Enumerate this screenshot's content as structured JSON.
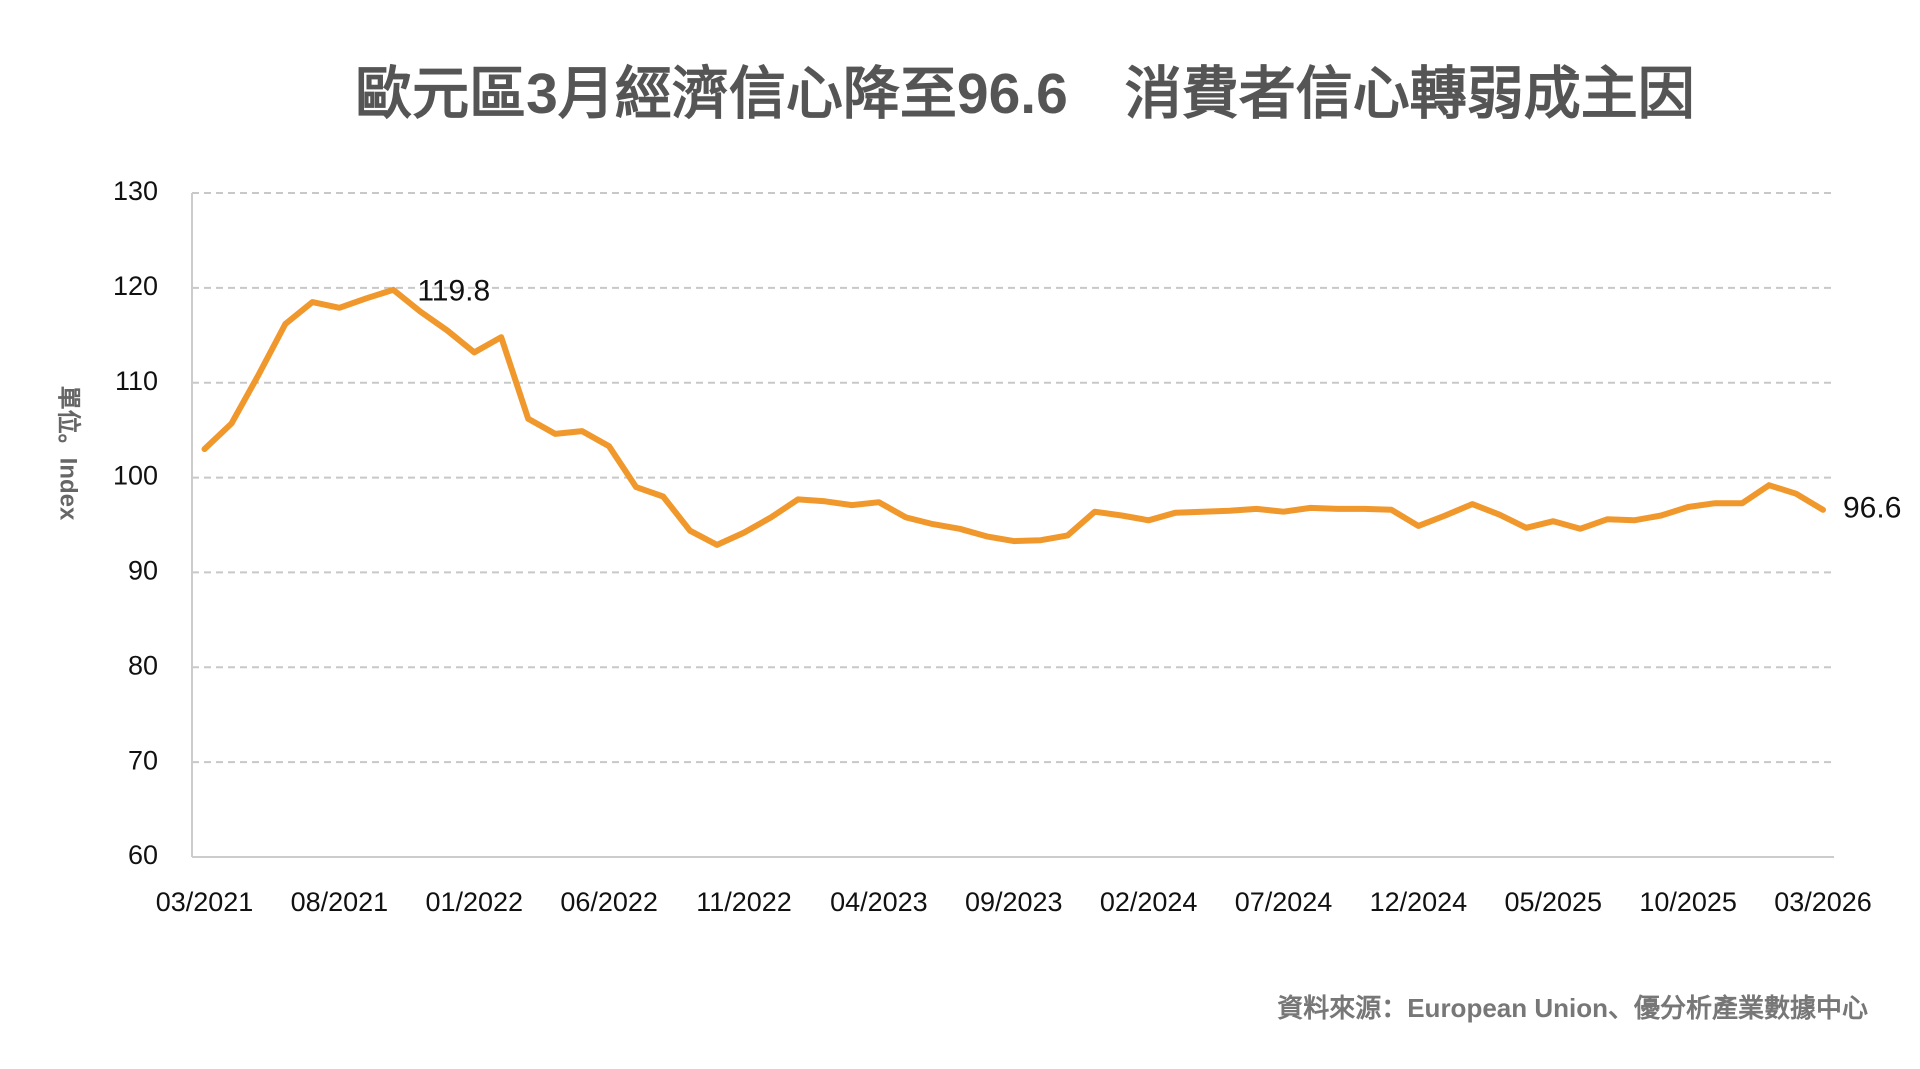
{
  "chart_data": {
    "type": "line",
    "title": "歐元區3月經濟信心降至96.6　消費者信心轉弱成主因",
    "y_label": "單位。Index",
    "source": "資料來源：European Union、優分析產業數據中心",
    "categories": [
      "03/2021",
      null,
      null,
      null,
      null,
      "08/2021",
      null,
      null,
      null,
      null,
      "01/2022",
      null,
      null,
      null,
      null,
      "06/2022",
      null,
      null,
      null,
      null,
      "11/2022",
      null,
      null,
      null,
      null,
      "04/2023",
      null,
      null,
      null,
      null,
      "09/2023",
      null,
      null,
      null,
      null,
      "02/2024",
      null,
      null,
      null,
      null,
      "07/2024",
      null,
      null,
      null,
      null,
      "12/2024",
      null,
      null,
      null,
      null,
      "05/2025",
      null,
      null,
      null,
      null,
      "10/2025",
      null,
      null,
      null,
      null,
      "03/2026"
    ],
    "values": [
      103.0,
      105.7,
      110.8,
      116.2,
      118.5,
      117.9,
      118.9,
      119.8,
      117.5,
      115.5,
      113.2,
      114.8,
      106.2,
      104.6,
      104.9,
      103.3,
      99.0,
      98.0,
      94.4,
      92.9,
      94.2,
      95.8,
      97.7,
      97.5,
      97.1,
      97.4,
      95.8,
      95.1,
      94.6,
      93.8,
      93.3,
      93.4,
      93.9,
      96.4,
      96.0,
      95.5,
      96.3,
      96.4,
      96.5,
      96.7,
      96.4,
      96.8,
      96.7,
      96.7,
      96.6,
      94.9,
      96.0,
      97.2,
      96.1,
      94.7,
      95.4,
      94.6,
      95.6,
      95.5,
      96.0,
      96.9,
      97.3,
      97.3,
      99.2,
      98.3,
      96.6
    ],
    "value_labels": [
      null,
      null,
      null,
      null,
      null,
      null,
      null,
      "119.8",
      null,
      null,
      null,
      null,
      null,
      null,
      null,
      null,
      null,
      null,
      null,
      null,
      null,
      null,
      null,
      null,
      null,
      null,
      null,
      null,
      null,
      null,
      null,
      null,
      null,
      null,
      null,
      null,
      null,
      null,
      null,
      null,
      null,
      null,
      null,
      null,
      null,
      null,
      null,
      null,
      null,
      null,
      null,
      null,
      null,
      null,
      null,
      null,
      null,
      null,
      null,
      null,
      "96.6"
    ],
    "color": "#f0982c",
    "ylim": [
      60,
      130
    ],
    "yticks": [
      60,
      70,
      80,
      90,
      100,
      110,
      120,
      130
    ],
    "grid": true
  }
}
